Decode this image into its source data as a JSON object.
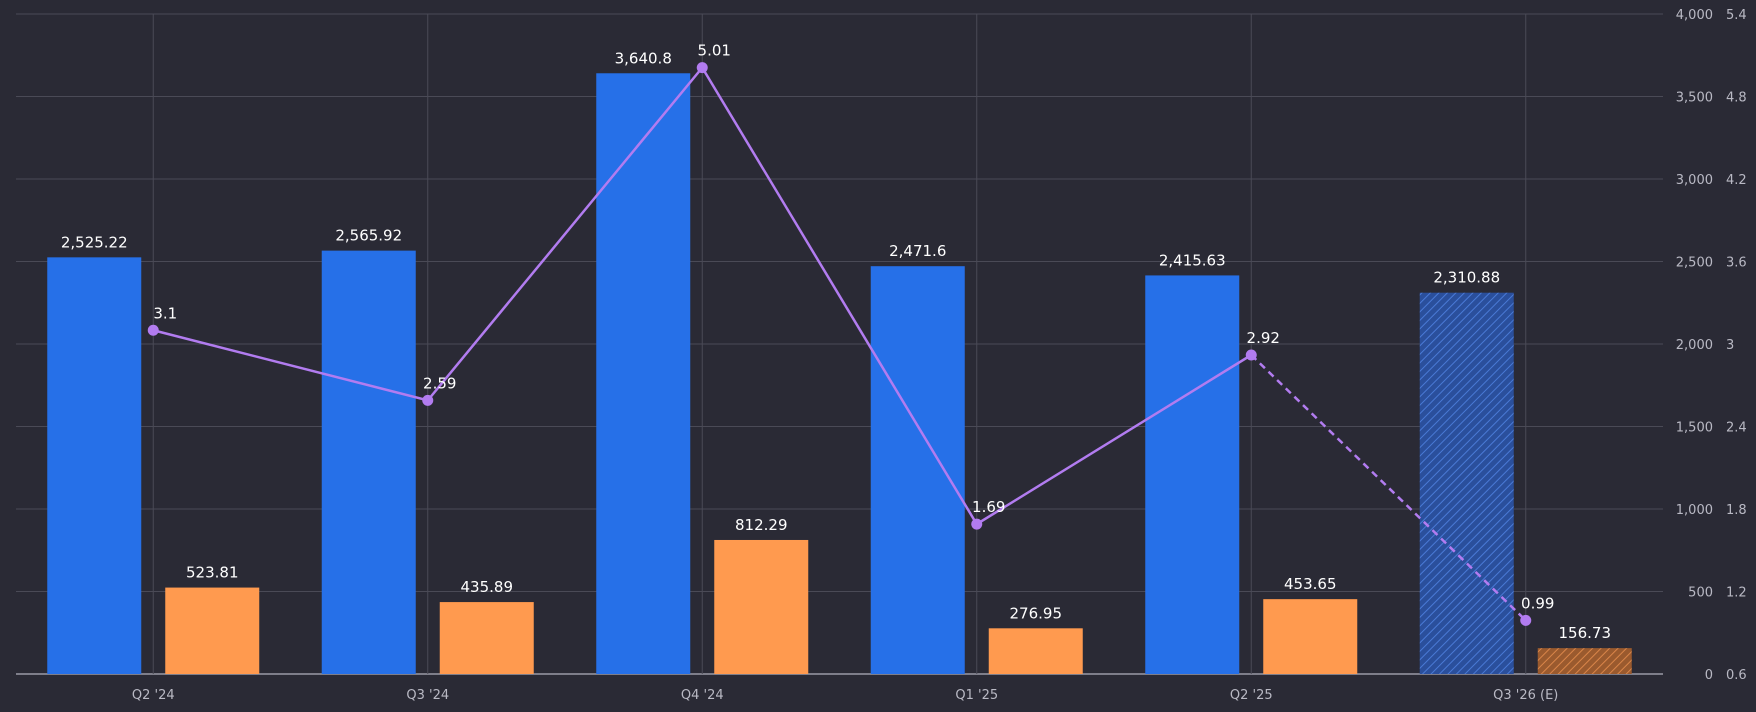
{
  "chart_data": {
    "type": "bar",
    "categories": [
      "Q2 '24",
      "Q3 '24",
      "Q4 '24",
      "Q1 '25",
      "Q2 '25",
      "Q3 '26 (E)"
    ],
    "series": [
      {
        "kind": "bar",
        "axis": "left",
        "color": "#2670e8",
        "values": [
          2525.22,
          2565.92,
          3640.8,
          2471.6,
          2415.63,
          2310.88
        ],
        "labels": [
          "2,525.22",
          "2,565.92",
          "3,640.8",
          "2,471.6",
          "2,415.63",
          "2,310.88"
        ],
        "estimate_last": true
      },
      {
        "kind": "bar",
        "axis": "left",
        "color": "#ff9a4f",
        "values": [
          523.81,
          435.89,
          812.29,
          276.95,
          453.65,
          156.73
        ],
        "labels": [
          "523.81",
          "435.89",
          "812.29",
          "276.95",
          "453.65",
          "156.73"
        ],
        "estimate_last": true
      },
      {
        "kind": "line",
        "axis": "right",
        "color": "#b27cf0",
        "values": [
          3.1,
          2.59,
          5.01,
          1.69,
          2.92,
          0.99
        ],
        "labels": [
          "3.1",
          "2.59",
          "5.01",
          "1.69",
          "2.92",
          "0.99"
        ],
        "estimate_last": true
      }
    ],
    "left_axis": {
      "ylim": [
        0,
        4000
      ],
      "ticks": [
        0,
        500,
        1000,
        1500,
        2000,
        2500,
        3000,
        3500,
        4000
      ],
      "tick_labels": [
        "0",
        "500",
        "1,000",
        "1,500",
        "2,000",
        "2,500",
        "3,000",
        "3,500",
        "4,000"
      ]
    },
    "right_axis": {
      "ylim": [
        0.6,
        5.4
      ],
      "ticks": [
        0.6,
        1.2,
        1.8,
        2.4,
        3,
        3.6,
        4.2,
        4.8,
        5.4
      ],
      "tick_labels": [
        "0.6",
        "1.2",
        "1.8",
        "2.4",
        "3",
        "3.6",
        "4.2",
        "4.8",
        "5.4"
      ]
    },
    "grid": true,
    "title": "",
    "xlabel": "",
    "ylabel": ""
  }
}
